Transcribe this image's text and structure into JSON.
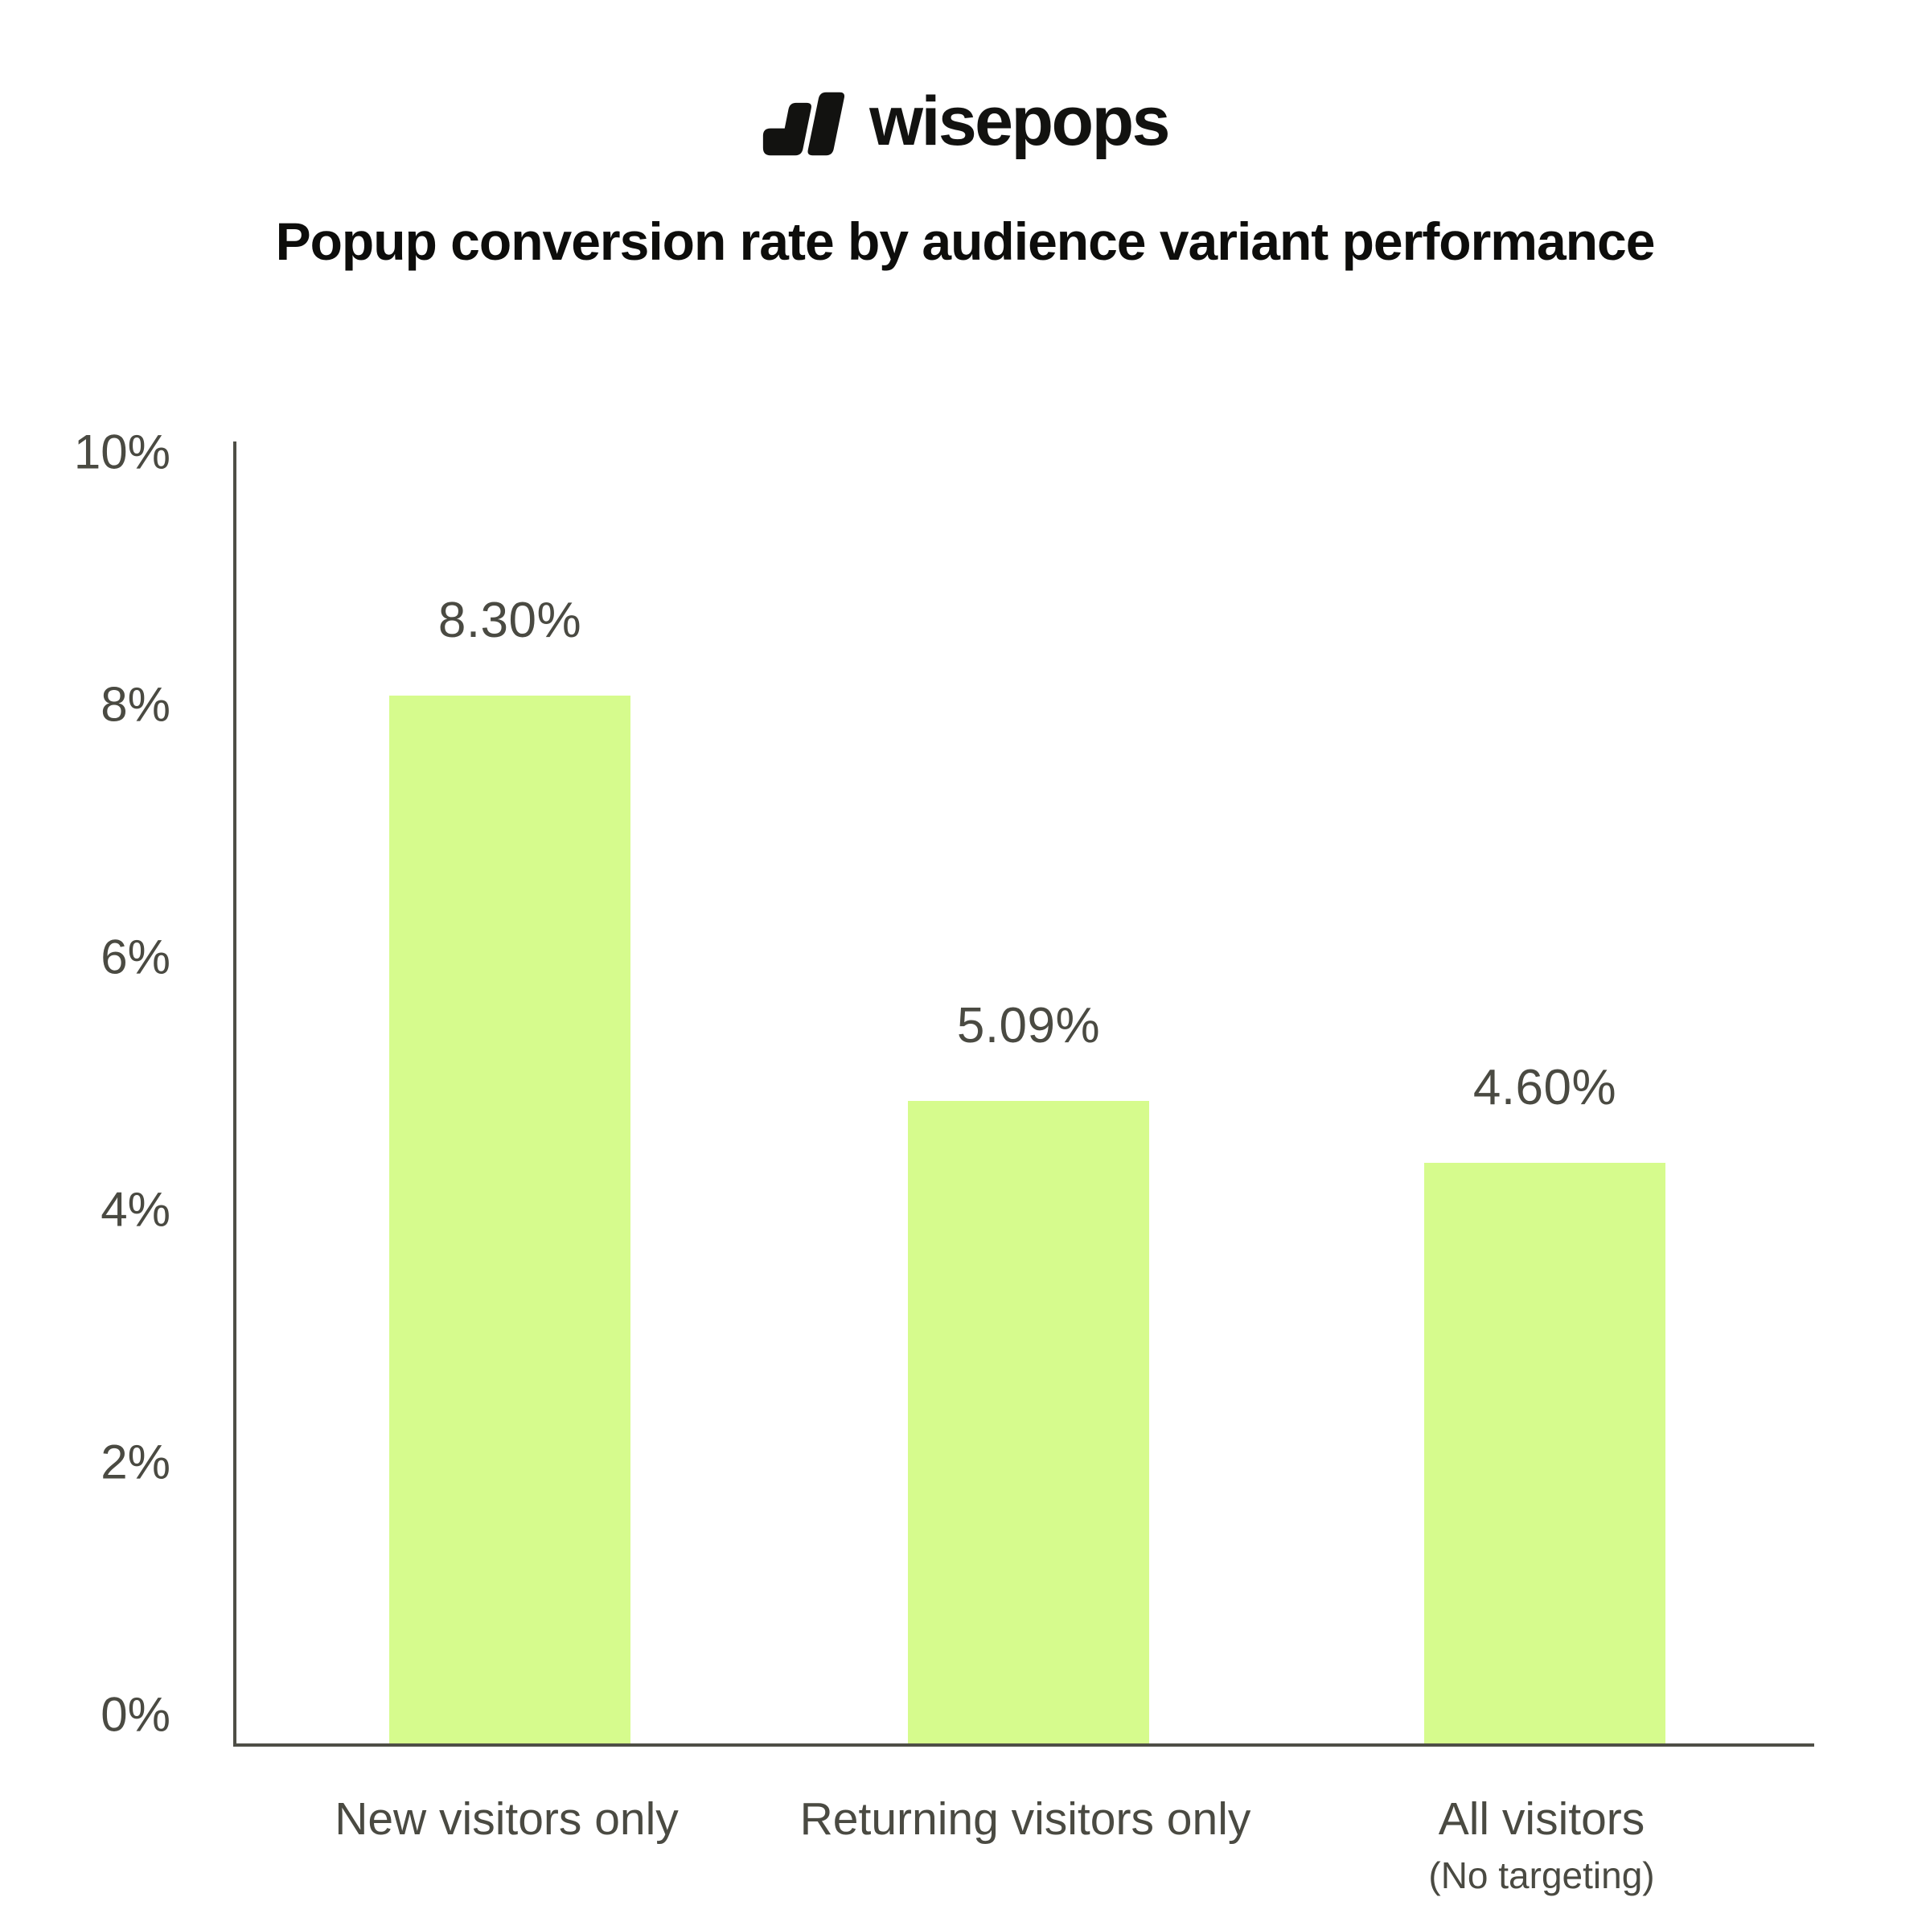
{
  "brand": {
    "logo_text": "wisepops"
  },
  "chart_data": {
    "type": "bar",
    "title": "Popup conversion rate by audience variant performance",
    "categories": [
      "New visitors only",
      "Returning visitors only",
      "All visitors"
    ],
    "category_subnotes": [
      "",
      "",
      "(No targeting)"
    ],
    "values": [
      8.3,
      5.09,
      4.6
    ],
    "value_labels": [
      "8.30%",
      "5.09%",
      "4.60%"
    ],
    "xlabel": "",
    "ylabel": "",
    "ylim": [
      0,
      10
    ],
    "y_ticks": [
      "0%",
      "2%",
      "4%",
      "6%",
      "8%",
      "10%"
    ],
    "y_tick_values": [
      0,
      2,
      4,
      6,
      8,
      10
    ],
    "grid": false,
    "legend": false,
    "colors": {
      "bar_fill": "#d6fb8d",
      "label_text": "#4a4a42",
      "axis_line": "#4e4e46",
      "title_text": "#0d0d0b"
    }
  }
}
